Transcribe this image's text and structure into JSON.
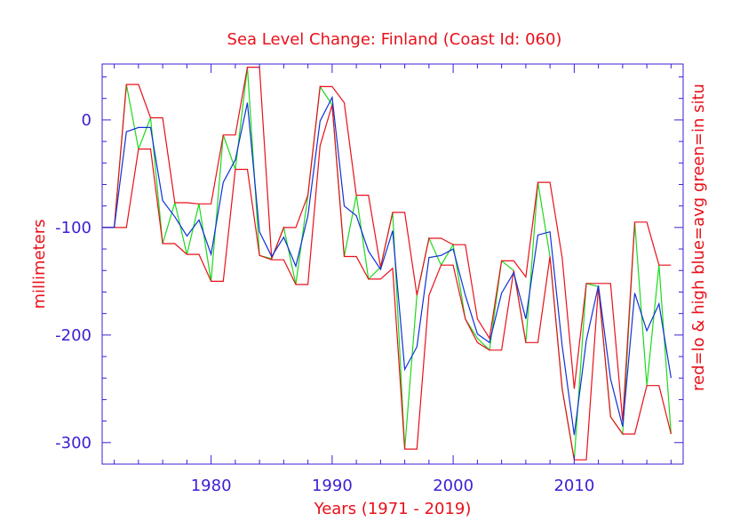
{
  "colors": {
    "frame": "#3a1fd6",
    "tick_label": "#3a1fd6",
    "text": "#e8101a",
    "low_high": "#e8101a",
    "average": "#1030d8",
    "in_situ": "#1ed81e"
  },
  "chart_data": {
    "type": "line",
    "title": "Sea Level Change: Finland (Coast Id: 060)",
    "xlabel": "Years (1971 - 2019)",
    "ylabel": "millimeters",
    "right_label": "red=lo & high  blue=avg  green=in situ",
    "xlim": [
      1971,
      2019
    ],
    "ylim": [
      -320,
      52
    ],
    "x_ticks": [
      1980,
      1990,
      2000,
      2010
    ],
    "x_tick_labels": [
      "1980",
      "1990",
      "2000",
      "2010"
    ],
    "y_ticks": [
      0,
      -100,
      -200,
      -300
    ],
    "y_tick_labels": [
      "0",
      "-100",
      "-200",
      "-300"
    ],
    "grid": false,
    "x": [
      1971,
      1972,
      1973,
      1974,
      1975,
      1976,
      1977,
      1978,
      1979,
      1980,
      1981,
      1982,
      1983,
      1984,
      1985,
      1986,
      1987,
      1988,
      1989,
      1990,
      1991,
      1992,
      1993,
      1994,
      1995,
      1996,
      1997,
      1998,
      1999,
      2000,
      2001,
      2002,
      2003,
      2004,
      2005,
      2006,
      2007,
      2008,
      2009,
      2010,
      2011,
      2012,
      2013,
      2014,
      2015,
      2016,
      2017,
      2018
    ],
    "series": [
      {
        "name": "high",
        "color_key": "low_high",
        "values": [
          -100,
          -100,
          33,
          33,
          2,
          2,
          -77,
          -77,
          -78,
          -78,
          -14,
          -14,
          49,
          49,
          -129,
          -100,
          -100,
          -70,
          31,
          31,
          16,
          -70,
          -70,
          -137,
          -86,
          -86,
          -163,
          -110,
          -110,
          -116,
          -116,
          -185,
          -203,
          -131,
          -131,
          -146,
          -58,
          -58,
          -128,
          -250,
          -152,
          -152,
          -152,
          -280,
          -95,
          -95,
          -135,
          -135
        ]
      },
      {
        "name": "low",
        "color_key": "low_high",
        "values": [
          -100,
          -100,
          -100,
          -27,
          -27,
          -115,
          -115,
          -125,
          -125,
          -150,
          -150,
          -46,
          -46,
          -126,
          -130,
          -130,
          -153,
          -153,
          -24,
          14,
          -127,
          -127,
          -148,
          -148,
          -138,
          -306,
          -306,
          -163,
          -135,
          -135,
          -185,
          -207,
          -214,
          -214,
          -140,
          -207,
          -207,
          -127,
          -250,
          -316,
          -316,
          -155,
          -276,
          -292,
          -292,
          -247,
          -247,
          -292
        ]
      },
      {
        "name": "avg",
        "color_key": "average",
        "values": [
          -100,
          -100,
          -11,
          -7,
          -7,
          -75,
          -90,
          -108,
          -93,
          -125,
          -58,
          -37,
          16,
          -104,
          -127,
          -109,
          -136,
          -89,
          -1,
          21,
          -80,
          -89,
          -122,
          -139,
          -103,
          -232,
          -211,
          -128,
          -126,
          -120,
          -163,
          -199,
          -207,
          -161,
          -142,
          -185,
          -107,
          -104,
          -210,
          -293,
          -205,
          -154,
          -241,
          -285,
          -161,
          -196,
          -171,
          -240
        ]
      },
      {
        "name": "in situ",
        "color_key": "in_situ",
        "values": [
          -100,
          -100,
          33,
          -27,
          2,
          -115,
          -77,
          -125,
          -78,
          -150,
          -14,
          -46,
          49,
          -126,
          -129,
          -100,
          -153,
          -70,
          31,
          14,
          -127,
          -70,
          -148,
          -137,
          -86,
          -306,
          -163,
          -110,
          -135,
          -116,
          -185,
          -203,
          -214,
          -131,
          -140,
          -207,
          -58,
          -127,
          -250,
          -316,
          -152,
          -155,
          -276,
          -292,
          -95,
          -247,
          -135,
          -292
        ]
      }
    ]
  }
}
